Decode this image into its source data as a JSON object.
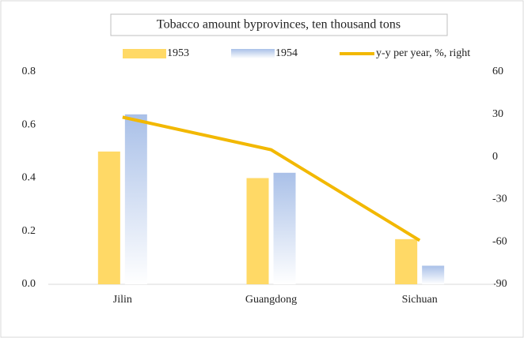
{
  "chart_data": {
    "type": "bar",
    "title": "Tobacco amount byprovinces, ten thousand tons",
    "categories": [
      "Jilin",
      "Guangdong",
      "Sichuan"
    ],
    "series": [
      {
        "name": "1953",
        "color": "#ffd966",
        "values": [
          0.5,
          0.4,
          0.17
        ]
      },
      {
        "name": "1954",
        "color": "#a9c0e8",
        "values": [
          0.64,
          0.42,
          0.07
        ]
      },
      {
        "name": "y-y per year, %, right",
        "color": "#f2b800",
        "type": "line",
        "axis": "y2",
        "values": [
          28,
          5,
          -59
        ]
      }
    ],
    "ylim": [
      0,
      0.8
    ],
    "yticks": [
      {
        "value": 0,
        "label": "0.0"
      },
      0.2,
      0.4,
      0.6,
      0.8
    ],
    "y2lim": [
      -90,
      60
    ],
    "y2ticks": [
      -90,
      -60,
      -30,
      0,
      30,
      60
    ],
    "grid": false
  }
}
